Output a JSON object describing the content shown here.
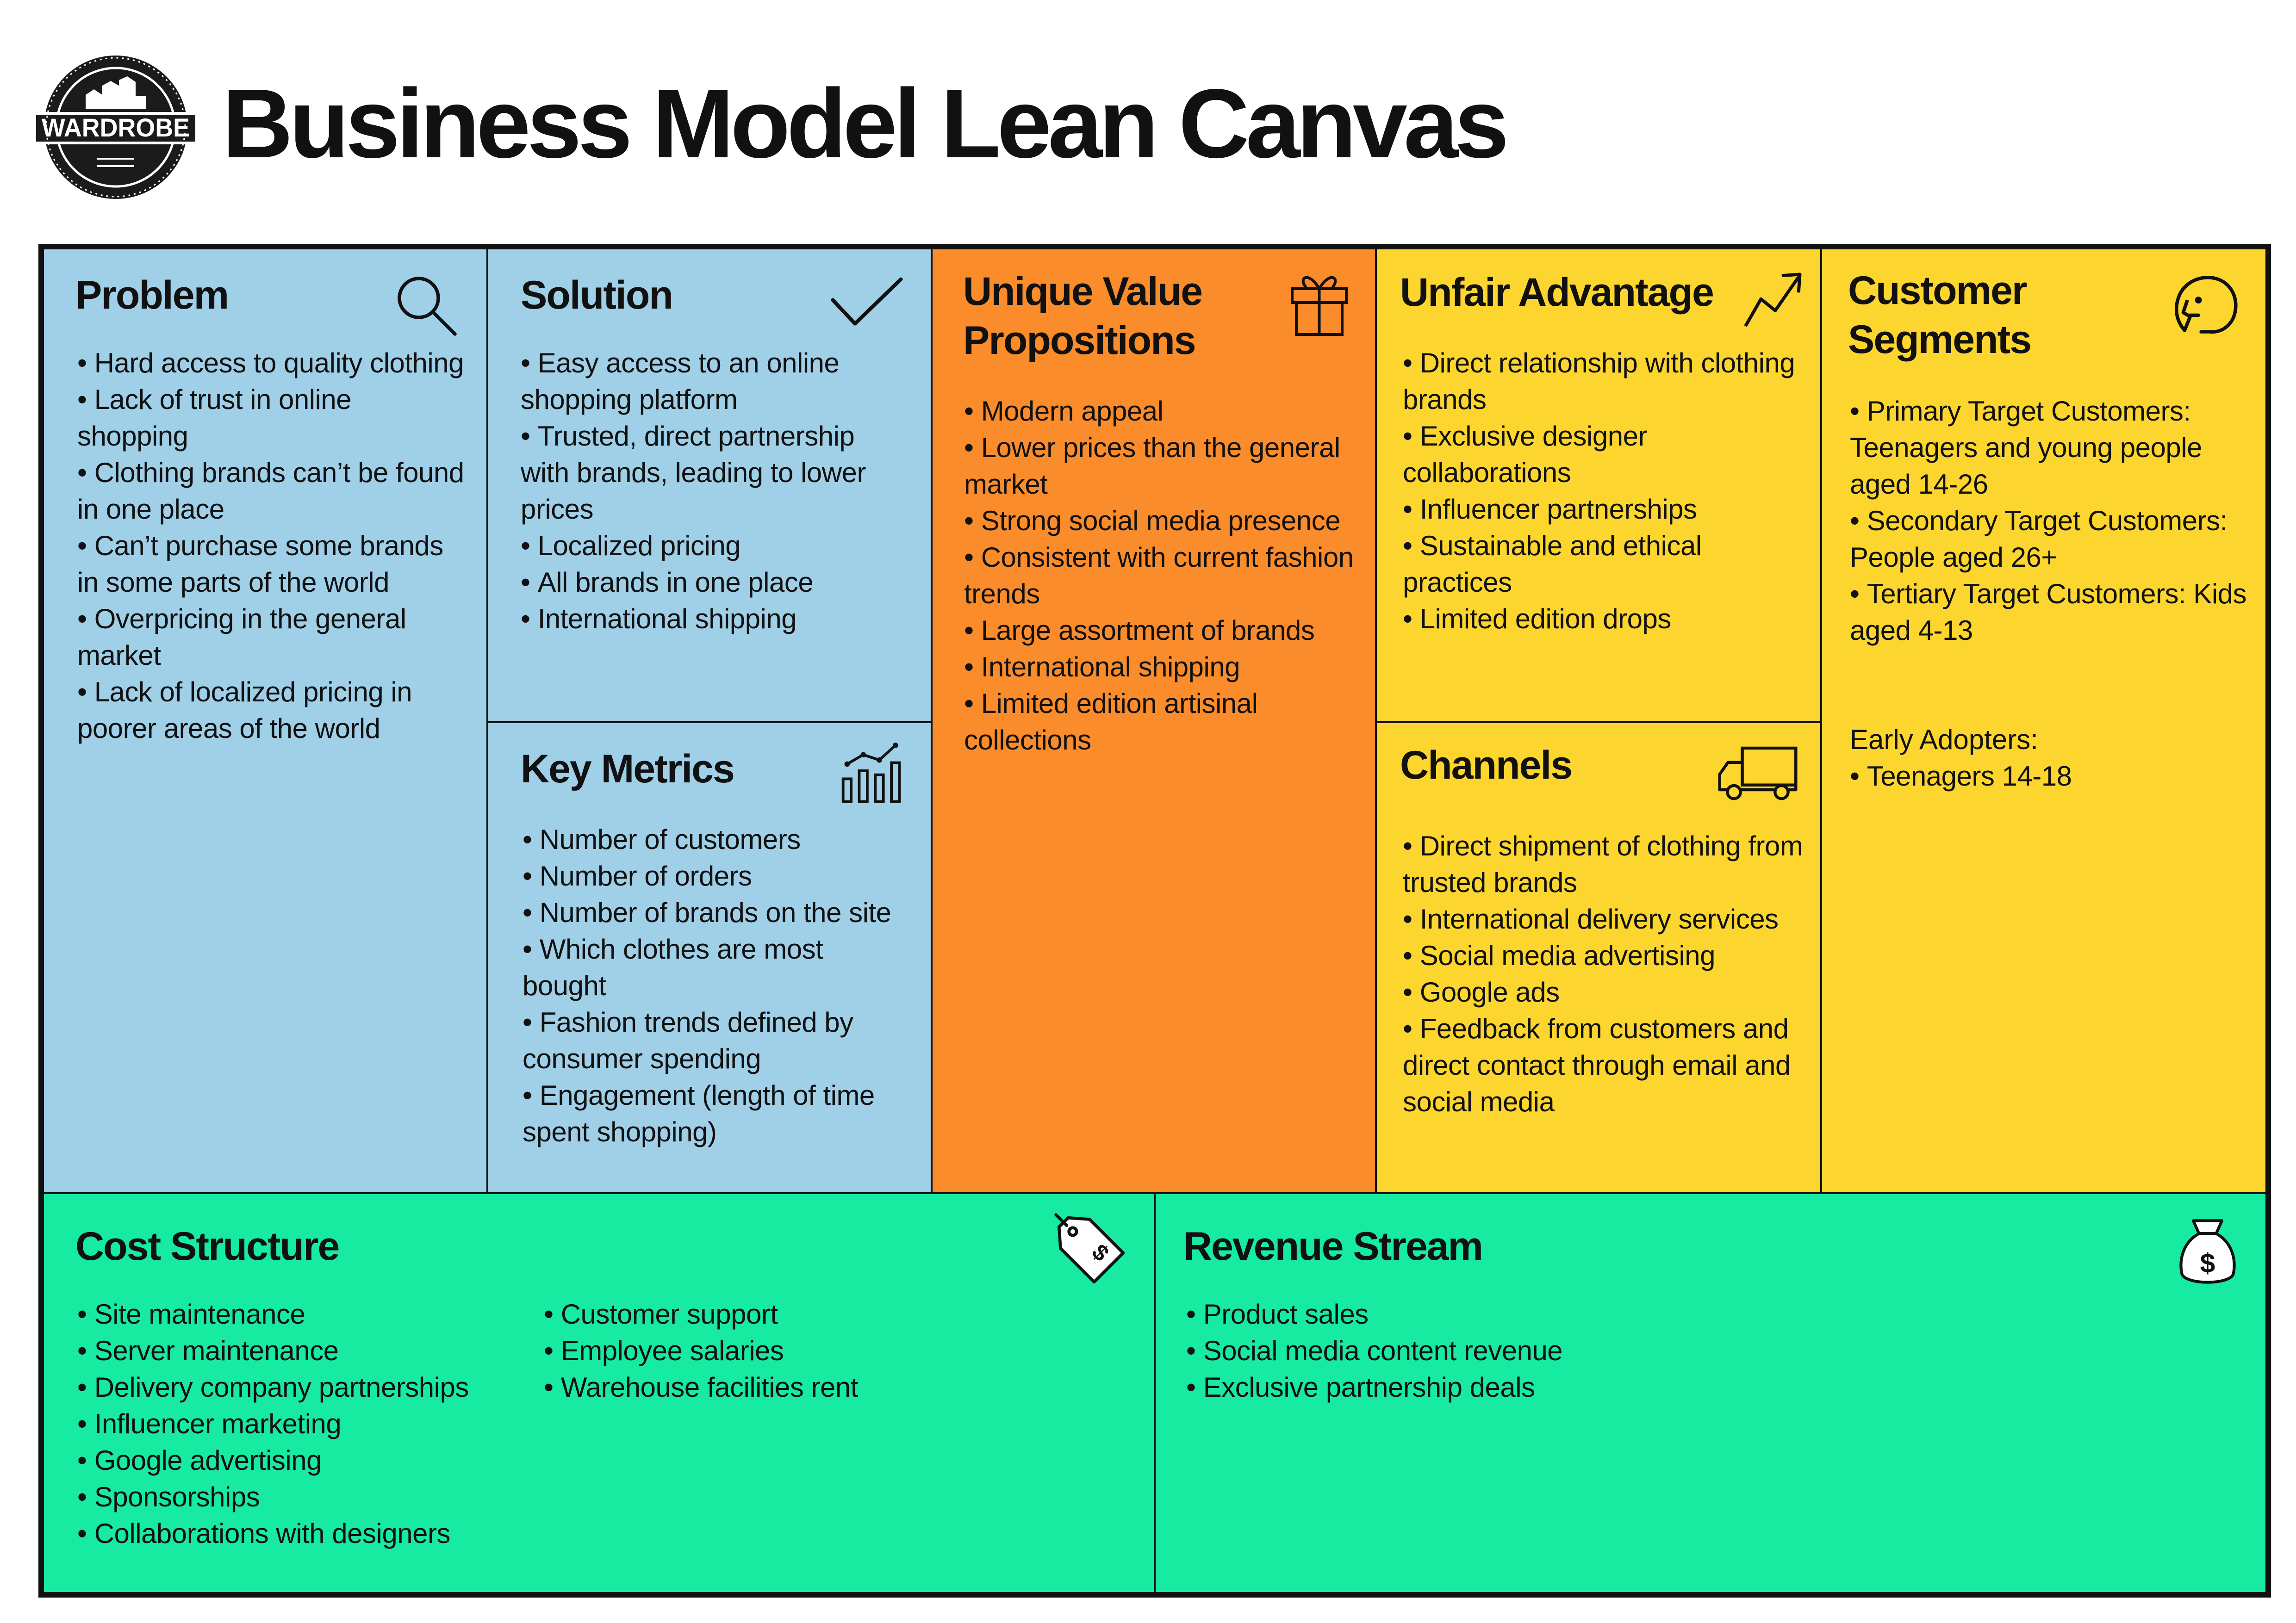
{
  "logo": {
    "name": "WARDROBE",
    "icon": "wardrobe-logo-seal"
  },
  "header": {
    "title": "Business Model Lean Canvas"
  },
  "colors": {
    "blue": "#a0cfe8",
    "orange": "#fb8c2c",
    "yellow": "#fcd62f",
    "green": "#17eaa1",
    "border": "#111111"
  },
  "problem": {
    "title": "Problem",
    "icon": "magnifier-icon",
    "items": [
      "Hard access to quality clothing",
      "Lack of trust in online shopping",
      "Clothing brands can’t be found in one place",
      "Can’t purchase some brands in some parts of the world",
      "Overpricing in the general market",
      "Lack of localized pricing in poorer areas of the world"
    ]
  },
  "solution": {
    "title": "Solution",
    "icon": "checkmark-icon",
    "items": [
      "Easy access to an online shopping platform",
      "Trusted, direct partnership with brands, leading to lower prices",
      "Localized pricing",
      "All brands in one place",
      "International shipping"
    ]
  },
  "key_metrics": {
    "title": "Key Metrics",
    "icon": "bar-chart-icon",
    "items": [
      "Number of customers",
      "Number of orders",
      "Number of brands on the site",
      "Which clothes are most bought",
      "Fashion trends defined by consumer spending",
      "Engagement (length of time spent shopping)"
    ]
  },
  "uvp": {
    "title_line1": "Unique Value",
    "title_line2": "Propositions",
    "icon": "gift-icon",
    "items": [
      "Modern appeal",
      "Lower prices than the general market",
      "Strong social media presence",
      "Consistent with current fashion trends",
      "Large assortment of brands",
      "International shipping",
      "Limited edition artisinal collections"
    ]
  },
  "unfair_advantage": {
    "title": "Unfair Advantage",
    "icon": "trend-up-icon",
    "items": [
      "Direct relationship with clothing brands",
      "Exclusive designer collaborations",
      "Influencer partnerships",
      "Sustainable and ethical practices",
      "Limited edition drops"
    ]
  },
  "channels": {
    "title": "Channels",
    "icon": "truck-icon",
    "items": [
      "Direct shipment of clothing from trusted brands",
      "International delivery services",
      "Social media advertising",
      "Google ads",
      "Feedback from customers and direct contact through email and social media"
    ]
  },
  "customer_segments": {
    "title_line1": "Customer",
    "title_line2": "Segments",
    "icon": "face-icon",
    "items": [
      "Primary Target Customers: Teenagers and young people aged 14-26",
      "Secondary Target Customers: People aged 26+",
      "Tertiary Target Customers: Kids aged 4-13"
    ],
    "early_adopters_label": "Early Adopters:",
    "early_adopters": [
      "Teenagers 14-18"
    ]
  },
  "cost_structure": {
    "title": "Cost Structure",
    "icon": "price-tag-icon",
    "items_col1": [
      "Site maintenance",
      "Server maintenance",
      "Delivery company partnerships",
      "Influencer marketing",
      "Google advertising",
      "Sponsorships",
      "Collaborations with designers"
    ],
    "items_col2": [
      "Customer support",
      "Employee salaries",
      "Warehouse facilities rent"
    ]
  },
  "revenue_stream": {
    "title": "Revenue Stream",
    "icon": "money-bag-icon",
    "items": [
      "Product sales",
      "Social media content revenue",
      "Exclusive partnership deals"
    ]
  }
}
